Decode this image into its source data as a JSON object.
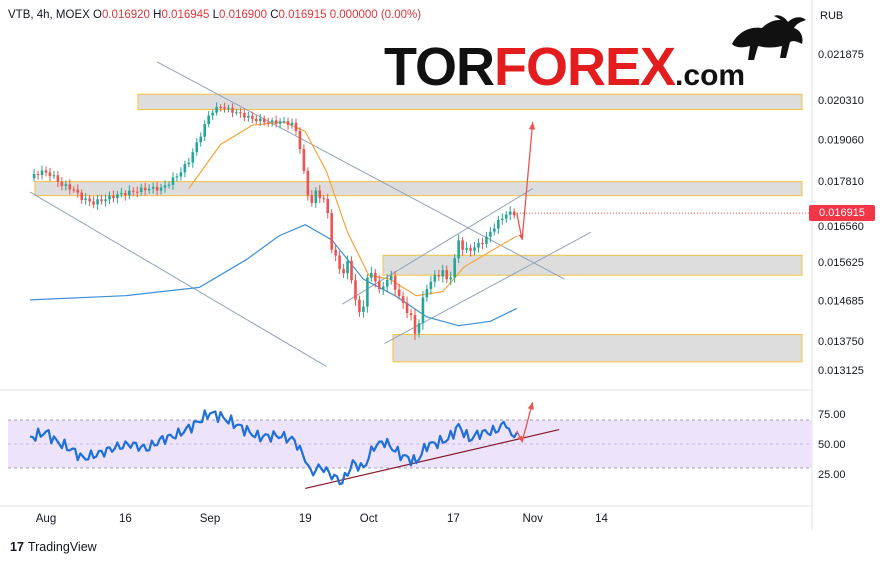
{
  "header": {
    "symbol": "VTB, 4h, MOEX",
    "open_label": "O",
    "open": "0.016920",
    "high_label": "H",
    "high": "0.016945",
    "low_label": "L",
    "low": "0.016900",
    "close_label": "C",
    "close": "0.016915",
    "change": "0.000000 (0.00%)"
  },
  "logo": {
    "part1": "TOR",
    "part2": "FOREX",
    "part3": ".com"
  },
  "footer": {
    "brand": "TradingView",
    "mark": "17"
  },
  "colors": {
    "up": "#26a69a",
    "down": "#ef5350",
    "ma_fast": "#f7a53b",
    "ma_slow": "#3d8fd8",
    "rsi": "#1e6fd9",
    "zone_border": "#f5c242",
    "arrow": "#ef5350"
  },
  "chart_data": [
    {
      "type": "candlestick",
      "currency": "RUB",
      "current_price": "0.016915",
      "y_ticks": [
        "0.021875",
        "0.020310",
        "0.019060",
        "0.017810",
        "0.016560",
        "0.015625",
        "0.014685",
        "0.013750",
        "0.013125"
      ],
      "x_ticks": [
        "Aug",
        "16",
        "Sep",
        "19",
        "Oct",
        "17",
        "Nov",
        "14"
      ],
      "zones": [
        [
          0.02,
          0.0205
        ],
        [
          0.0174,
          0.0178
        ],
        [
          0.0153,
          0.0158
        ],
        [
          0.0133,
          0.0139
        ]
      ],
      "price_path": [
        [
          "Jul 29",
          0.0179
        ],
        [
          "Jul 31",
          0.0181
        ],
        [
          "Aug 2",
          0.018
        ],
        [
          "Aug 4",
          0.0177
        ],
        [
          "Aug 6",
          0.0176
        ],
        [
          "Aug 8",
          0.0173
        ],
        [
          "Aug 10",
          0.0172
        ],
        [
          "Aug 12",
          0.0173
        ],
        [
          "Aug 14",
          0.0174
        ],
        [
          "Aug 17",
          0.0175
        ],
        [
          "Aug 20",
          0.0176
        ],
        [
          "Aug 23",
          0.0176
        ],
        [
          "Aug 26",
          0.018
        ],
        [
          "Aug 28",
          0.0184
        ],
        [
          "Aug 30",
          0.0191
        ],
        [
          "Sep 1",
          0.0199
        ],
        [
          "Sep 3",
          0.0201
        ],
        [
          "Sep 6",
          0.0199
        ],
        [
          "Sep 9",
          0.0197
        ],
        [
          "Sep 12",
          0.0196
        ],
        [
          "Sep 15",
          0.0196
        ],
        [
          "Sep 17",
          0.0195
        ],
        [
          "Sep 18",
          0.0188
        ],
        [
          "Sep 19",
          0.0178
        ],
        [
          "Sep 20",
          0.0171
        ],
        [
          "Sep 21",
          0.0175
        ],
        [
          "Sep 23",
          0.0172
        ],
        [
          "Sep 24",
          0.016
        ],
        [
          "Sep 26",
          0.0153
        ],
        [
          "Sep 27",
          0.0156
        ],
        [
          "Sep 28",
          0.0151
        ],
        [
          "Sep 29",
          0.0143
        ],
        [
          "Sep 30",
          0.0146
        ],
        [
          "Oct 1",
          0.0154
        ],
        [
          "Oct 2",
          0.0153
        ],
        [
          "Oct 3",
          0.0149
        ],
        [
          "Oct 5",
          0.0153
        ],
        [
          "Oct 7",
          0.0147
        ],
        [
          "Oct 9",
          0.0143
        ],
        [
          "Oct 10",
          0.0138
        ],
        [
          "Oct 11",
          0.0146
        ],
        [
          "Oct 12",
          0.015
        ],
        [
          "Oct 13",
          0.0152
        ],
        [
          "Oct 15",
          0.0154
        ],
        [
          "Oct 16",
          0.0151
        ],
        [
          "Oct 17",
          0.0155
        ],
        [
          "Oct 18",
          0.0162
        ],
        [
          "Oct 19",
          0.0159
        ],
        [
          "Oct 21",
          0.016
        ],
        [
          "Oct 23",
          0.0162
        ],
        [
          "Oct 25",
          0.0166
        ],
        [
          "Oct 27",
          0.0169
        ],
        [
          "Oct 28",
          0.0169
        ],
        [
          "Oct 29",
          0.01691
        ]
      ],
      "ma_fast_path": [
        [
          "Aug 28",
          0.0176
        ],
        [
          "Sep 3",
          0.0189
        ],
        [
          "Sep 9",
          0.0195
        ],
        [
          "Sep 15",
          0.0196
        ],
        [
          "Sep 19",
          0.0193
        ],
        [
          "Sep 23",
          0.0181
        ],
        [
          "Sep 27",
          0.0164
        ],
        [
          "Oct 1",
          0.0153
        ],
        [
          "Oct 5",
          0.0152
        ],
        [
          "Oct 10",
          0.0148
        ],
        [
          "Oct 15",
          0.0149
        ],
        [
          "Oct 19",
          0.0155
        ],
        [
          "Oct 24",
          0.0159
        ],
        [
          "Oct 29",
          0.0163
        ]
      ],
      "ma_slow_path": [
        [
          "Jul 29",
          0.0147
        ],
        [
          "Aug 16",
          0.0148
        ],
        [
          "Aug 30",
          0.015
        ],
        [
          "Sep 8",
          0.0157
        ],
        [
          "Sep 14",
          0.0163
        ],
        [
          "Sep 19",
          0.0166
        ],
        [
          "Sep 24",
          0.0162
        ],
        [
          "Sep 30",
          0.0152
        ],
        [
          "Oct 6",
          0.0148
        ],
        [
          "Oct 12",
          0.0143
        ],
        [
          "Oct 18",
          0.0141
        ],
        [
          "Oct 24",
          0.0142
        ],
        [
          "Oct 29",
          0.0145
        ]
      ],
      "trend_lines": [
        [
          [
            "Jul 29",
            0.0175
          ],
          [
            "Sep 23",
            0.0132
          ]
        ],
        [
          [
            "Aug 22",
            0.0216
          ],
          [
            "Nov 7",
            0.0152
          ]
        ],
        [
          [
            "Sep 26",
            0.0146
          ],
          [
            "Nov 1",
            0.0176
          ]
        ],
        [
          [
            "Oct 4",
            0.0137
          ],
          [
            "Nov 12",
            0.0164
          ]
        ]
      ],
      "forecast": [
        [
          "Oct 29",
          0.01691
        ],
        [
          "Oct 30",
          0.0162
        ],
        [
          "Nov 1",
          0.0196
        ]
      ]
    },
    {
      "type": "line",
      "indicator": "RSI",
      "y_ticks": [
        "75.00",
        "50.00",
        "25.00"
      ],
      "band": [
        30,
        70
      ],
      "rsi_path": [
        [
          "Jul 29",
          55
        ],
        [
          "Aug 1",
          60
        ],
        [
          "Aug 3",
          52
        ],
        [
          "Aug 6",
          45
        ],
        [
          "Aug 8",
          38
        ],
        [
          "Aug 11",
          42
        ],
        [
          "Aug 14",
          47
        ],
        [
          "Aug 17",
          50
        ],
        [
          "Aug 20",
          46
        ],
        [
          "Aug 23",
          54
        ],
        [
          "Aug 26",
          58
        ],
        [
          "Aug 29",
          66
        ],
        [
          "Sep 1",
          76
        ],
        [
          "Sep 3",
          73
        ],
        [
          "Sep 6",
          66
        ],
        [
          "Sep 10",
          56
        ],
        [
          "Sep 14",
          57
        ],
        [
          "Sep 17",
          53
        ],
        [
          "Sep 18",
          45
        ],
        [
          "Sep 19",
          38
        ],
        [
          "Sep 20",
          26
        ],
        [
          "Sep 22",
          31
        ],
        [
          "Sep 24",
          24
        ],
        [
          "Sep 26",
          18
        ],
        [
          "Sep 28",
          34
        ],
        [
          "Sep 30",
          30
        ],
        [
          "Oct 2",
          48
        ],
        [
          "Oct 4",
          52
        ],
        [
          "Oct 7",
          41
        ],
        [
          "Oct 10",
          35
        ],
        [
          "Oct 12",
          49
        ],
        [
          "Oct 14",
          51
        ],
        [
          "Oct 16",
          54
        ],
        [
          "Oct 18",
          65
        ],
        [
          "Oct 20",
          54
        ],
        [
          "Oct 22",
          59
        ],
        [
          "Oct 25",
          61
        ],
        [
          "Oct 27",
          68
        ],
        [
          "Oct 28",
          55
        ],
        [
          "Oct 29",
          61
        ]
      ],
      "trend_line": [
        [
          "Sep 19",
          13
        ],
        [
          "Nov 6",
          62
        ]
      ],
      "forecast": [
        [
          "Oct 29",
          61
        ],
        [
          "Oct 30",
          52
        ],
        [
          "Nov 1",
          85
        ]
      ]
    }
  ]
}
